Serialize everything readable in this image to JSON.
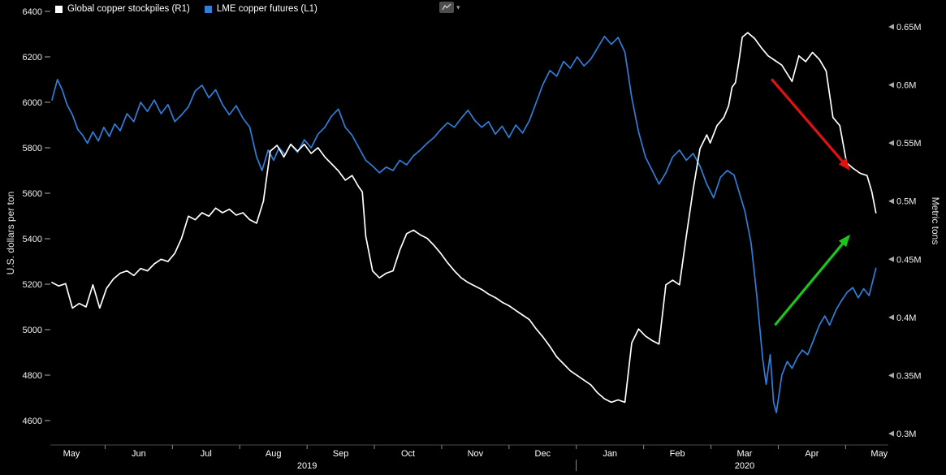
{
  "window": {
    "background": "#000000"
  },
  "legend": {
    "items": [
      {
        "label": "Global copper stockpiles (R1)",
        "color": "#ffffff"
      },
      {
        "label": "LME copper futures (L1)",
        "color": "#2f7ed8"
      }
    ]
  },
  "toolbar": {
    "caret": "▾"
  },
  "chart_data": {
    "type": "line",
    "x_axis": {
      "months": [
        "May",
        "Jun",
        "Jul",
        "Aug",
        "Sep",
        "Oct",
        "Nov",
        "Dec",
        "Jan",
        "Feb",
        "Mar",
        "Apr",
        "May"
      ],
      "years": [
        {
          "label": "2019",
          "month_range": [
            0,
            7
          ]
        },
        {
          "label": "2020",
          "month_range": [
            8,
            12
          ]
        }
      ]
    },
    "left_axis": {
      "title": "U.S. dollars per ton",
      "range": [
        4600,
        6400
      ],
      "ticks": [
        6400,
        6200,
        6000,
        5800,
        5600,
        5400,
        5200,
        5000,
        4800,
        4600
      ]
    },
    "right_axis": {
      "title": "Metric tons",
      "range_millions": [
        0.3,
        0.65
      ],
      "ticks": [
        {
          "value": 0.65,
          "label": "0.65M"
        },
        {
          "value": 0.6,
          "label": "0.6M"
        },
        {
          "value": 0.55,
          "label": "0.55M"
        },
        {
          "value": 0.5,
          "label": "0.5M"
        },
        {
          "value": 0.45,
          "label": "0.45M"
        },
        {
          "value": 0.4,
          "label": "0.4M"
        },
        {
          "value": 0.35,
          "label": "0.35M"
        },
        {
          "value": 0.3,
          "label": "0.3M"
        }
      ]
    },
    "series": [
      {
        "name": "LME copper futures (L1)",
        "slug": "lme-copper-futures",
        "axis": "left",
        "unit": "USD per ton",
        "color": "#2f7ed8",
        "points": [
          [
            0,
            6010
          ],
          [
            0.08,
            6100
          ],
          [
            0.15,
            6055
          ],
          [
            0.22,
            5990
          ],
          [
            0.3,
            5945
          ],
          [
            0.38,
            5880
          ],
          [
            0.45,
            5855
          ],
          [
            0.52,
            5820
          ],
          [
            0.6,
            5870
          ],
          [
            0.68,
            5830
          ],
          [
            0.76,
            5890
          ],
          [
            0.84,
            5850
          ],
          [
            0.92,
            5905
          ],
          [
            1,
            5875
          ],
          [
            1.1,
            5950
          ],
          [
            1.2,
            5915
          ],
          [
            1.3,
            6000
          ],
          [
            1.4,
            5960
          ],
          [
            1.5,
            6010
          ],
          [
            1.6,
            5950
          ],
          [
            1.7,
            5990
          ],
          [
            1.8,
            5915
          ],
          [
            1.9,
            5945
          ],
          [
            2,
            5980
          ],
          [
            2.1,
            6050
          ],
          [
            2.2,
            6075
          ],
          [
            2.3,
            6020
          ],
          [
            2.4,
            6055
          ],
          [
            2.5,
            5990
          ],
          [
            2.6,
            5945
          ],
          [
            2.7,
            5985
          ],
          [
            2.8,
            5930
          ],
          [
            2.9,
            5890
          ],
          [
            3,
            5760
          ],
          [
            3.08,
            5700
          ],
          [
            3.17,
            5790
          ],
          [
            3.25,
            5745
          ],
          [
            3.33,
            5800
          ],
          [
            3.42,
            5770
          ],
          [
            3.5,
            5815
          ],
          [
            3.6,
            5780
          ],
          [
            3.7,
            5835
          ],
          [
            3.8,
            5800
          ],
          [
            3.9,
            5860
          ],
          [
            4,
            5890
          ],
          [
            4.1,
            5940
          ],
          [
            4.2,
            5970
          ],
          [
            4.3,
            5890
          ],
          [
            4.4,
            5855
          ],
          [
            4.5,
            5800
          ],
          [
            4.6,
            5745
          ],
          [
            4.7,
            5720
          ],
          [
            4.8,
            5690
          ],
          [
            4.9,
            5715
          ],
          [
            5,
            5700
          ],
          [
            5.1,
            5745
          ],
          [
            5.2,
            5725
          ],
          [
            5.3,
            5765
          ],
          [
            5.4,
            5790
          ],
          [
            5.5,
            5820
          ],
          [
            5.6,
            5845
          ],
          [
            5.7,
            5880
          ],
          [
            5.8,
            5910
          ],
          [
            5.9,
            5890
          ],
          [
            6,
            5930
          ],
          [
            6.1,
            5965
          ],
          [
            6.2,
            5920
          ],
          [
            6.3,
            5890
          ],
          [
            6.4,
            5915
          ],
          [
            6.5,
            5860
          ],
          [
            6.6,
            5895
          ],
          [
            6.7,
            5845
          ],
          [
            6.8,
            5900
          ],
          [
            6.9,
            5865
          ],
          [
            7,
            5920
          ],
          [
            7.1,
            6000
          ],
          [
            7.2,
            6080
          ],
          [
            7.3,
            6140
          ],
          [
            7.4,
            6115
          ],
          [
            7.5,
            6180
          ],
          [
            7.6,
            6150
          ],
          [
            7.7,
            6200
          ],
          [
            7.8,
            6160
          ],
          [
            7.9,
            6190
          ],
          [
            8,
            6240
          ],
          [
            8.1,
            6290
          ],
          [
            8.2,
            6255
          ],
          [
            8.3,
            6285
          ],
          [
            8.4,
            6220
          ],
          [
            8.5,
            6020
          ],
          [
            8.6,
            5870
          ],
          [
            8.7,
            5760
          ],
          [
            8.8,
            5700
          ],
          [
            8.9,
            5640
          ],
          [
            9,
            5690
          ],
          [
            9.1,
            5760
          ],
          [
            9.2,
            5790
          ],
          [
            9.3,
            5745
          ],
          [
            9.4,
            5775
          ],
          [
            9.5,
            5720
          ],
          [
            9.6,
            5640
          ],
          [
            9.7,
            5580
          ],
          [
            9.8,
            5670
          ],
          [
            9.9,
            5700
          ],
          [
            10,
            5680
          ],
          [
            10.08,
            5600
          ],
          [
            10.16,
            5520
          ],
          [
            10.25,
            5380
          ],
          [
            10.33,
            5160
          ],
          [
            10.42,
            4870
          ],
          [
            10.47,
            4760
          ],
          [
            10.53,
            4890
          ],
          [
            10.58,
            4680
          ],
          [
            10.62,
            4635
          ],
          [
            10.7,
            4800
          ],
          [
            10.78,
            4860
          ],
          [
            10.85,
            4830
          ],
          [
            10.93,
            4880
          ],
          [
            11,
            4910
          ],
          [
            11.08,
            4890
          ],
          [
            11.16,
            4950
          ],
          [
            11.25,
            5020
          ],
          [
            11.33,
            5060
          ],
          [
            11.4,
            5020
          ],
          [
            11.5,
            5090
          ],
          [
            11.58,
            5130
          ],
          [
            11.66,
            5165
          ],
          [
            11.74,
            5185
          ],
          [
            11.82,
            5140
          ],
          [
            11.9,
            5180
          ],
          [
            11.98,
            5150
          ],
          [
            12.08,
            5270
          ]
        ]
      },
      {
        "name": "Global copper stockpiles (R1)",
        "slug": "global-copper-stockpiles",
        "axis": "right",
        "unit": "metric tons (millions)",
        "color": "#ffffff",
        "points": [
          [
            0,
            0.43
          ],
          [
            0.1,
            0.427
          ],
          [
            0.2,
            0.429
          ],
          [
            0.3,
            0.408
          ],
          [
            0.4,
            0.412
          ],
          [
            0.5,
            0.409
          ],
          [
            0.6,
            0.428
          ],
          [
            0.7,
            0.408
          ],
          [
            0.8,
            0.425
          ],
          [
            0.9,
            0.433
          ],
          [
            1,
            0.438
          ],
          [
            1.1,
            0.44
          ],
          [
            1.2,
            0.436
          ],
          [
            1.3,
            0.442
          ],
          [
            1.4,
            0.44
          ],
          [
            1.5,
            0.446
          ],
          [
            1.6,
            0.45
          ],
          [
            1.7,
            0.448
          ],
          [
            1.8,
            0.455
          ],
          [
            1.9,
            0.468
          ],
          [
            2,
            0.487
          ],
          [
            2.1,
            0.484
          ],
          [
            2.2,
            0.49
          ],
          [
            2.3,
            0.487
          ],
          [
            2.4,
            0.494
          ],
          [
            2.5,
            0.49
          ],
          [
            2.6,
            0.493
          ],
          [
            2.7,
            0.488
          ],
          [
            2.8,
            0.49
          ],
          [
            2.9,
            0.484
          ],
          [
            3,
            0.481
          ],
          [
            3.1,
            0.5
          ],
          [
            3.2,
            0.543
          ],
          [
            3.3,
            0.548
          ],
          [
            3.4,
            0.538
          ],
          [
            3.5,
            0.549
          ],
          [
            3.6,
            0.543
          ],
          [
            3.7,
            0.549
          ],
          [
            3.8,
            0.541
          ],
          [
            3.9,
            0.546
          ],
          [
            4,
            0.538
          ],
          [
            4.1,
            0.532
          ],
          [
            4.2,
            0.526
          ],
          [
            4.3,
            0.518
          ],
          [
            4.4,
            0.522
          ],
          [
            4.5,
            0.512
          ],
          [
            4.55,
            0.508
          ],
          [
            4.6,
            0.47
          ],
          [
            4.7,
            0.44
          ],
          [
            4.8,
            0.434
          ],
          [
            4.9,
            0.438
          ],
          [
            5,
            0.44
          ],
          [
            5.1,
            0.458
          ],
          [
            5.2,
            0.472
          ],
          [
            5.3,
            0.475
          ],
          [
            5.4,
            0.471
          ],
          [
            5.5,
            0.468
          ],
          [
            5.6,
            0.462
          ],
          [
            5.7,
            0.455
          ],
          [
            5.8,
            0.447
          ],
          [
            5.9,
            0.44
          ],
          [
            6,
            0.434
          ],
          [
            6.1,
            0.43
          ],
          [
            6.2,
            0.427
          ],
          [
            6.3,
            0.424
          ],
          [
            6.4,
            0.42
          ],
          [
            6.5,
            0.417
          ],
          [
            6.6,
            0.413
          ],
          [
            6.7,
            0.41
          ],
          [
            6.8,
            0.406
          ],
          [
            6.9,
            0.402
          ],
          [
            7,
            0.398
          ],
          [
            7.1,
            0.39
          ],
          [
            7.2,
            0.383
          ],
          [
            7.3,
            0.375
          ],
          [
            7.4,
            0.366
          ],
          [
            7.5,
            0.36
          ],
          [
            7.6,
            0.354
          ],
          [
            7.7,
            0.35
          ],
          [
            7.8,
            0.346
          ],
          [
            7.9,
            0.342
          ],
          [
            8,
            0.335
          ],
          [
            8.1,
            0.33
          ],
          [
            8.2,
            0.327
          ],
          [
            8.3,
            0.329
          ],
          [
            8.4,
            0.327
          ],
          [
            8.5,
            0.378
          ],
          [
            8.6,
            0.39
          ],
          [
            8.7,
            0.384
          ],
          [
            8.8,
            0.38
          ],
          [
            8.9,
            0.377
          ],
          [
            9,
            0.428
          ],
          [
            9.1,
            0.432
          ],
          [
            9.2,
            0.428
          ],
          [
            9.3,
            0.47
          ],
          [
            9.4,
            0.51
          ],
          [
            9.5,
            0.545
          ],
          [
            9.6,
            0.557
          ],
          [
            9.65,
            0.55
          ],
          [
            9.75,
            0.565
          ],
          [
            9.85,
            0.572
          ],
          [
            9.92,
            0.582
          ],
          [
            9.97,
            0.598
          ],
          [
            10.02,
            0.602
          ],
          [
            10.07,
            0.62
          ],
          [
            10.12,
            0.641
          ],
          [
            10.2,
            0.645
          ],
          [
            10.3,
            0.64
          ],
          [
            10.4,
            0.632
          ],
          [
            10.5,
            0.625
          ],
          [
            10.6,
            0.621
          ],
          [
            10.7,
            0.617
          ],
          [
            10.85,
            0.603
          ],
          [
            10.95,
            0.625
          ],
          [
            11.05,
            0.62
          ],
          [
            11.15,
            0.628
          ],
          [
            11.25,
            0.622
          ],
          [
            11.35,
            0.612
          ],
          [
            11.45,
            0.572
          ],
          [
            11.55,
            0.565
          ],
          [
            11.65,
            0.533
          ],
          [
            11.75,
            0.528
          ],
          [
            11.85,
            0.524
          ],
          [
            11.95,
            0.522
          ],
          [
            12.02,
            0.508
          ],
          [
            12.08,
            0.49
          ]
        ]
      }
    ],
    "annotations": [
      {
        "name": "stockpiles-decline-arrow",
        "type": "arrow",
        "color": "#e41111",
        "axis": "right",
        "from": [
          10.55,
          0.605
        ],
        "to": [
          11.68,
          0.528
        ]
      },
      {
        "name": "futures-rebound-arrow",
        "type": "arrow",
        "color": "#1ec41e",
        "axis": "left",
        "from": [
          10.6,
          5020
        ],
        "to": [
          11.68,
          5410
        ]
      }
    ]
  }
}
